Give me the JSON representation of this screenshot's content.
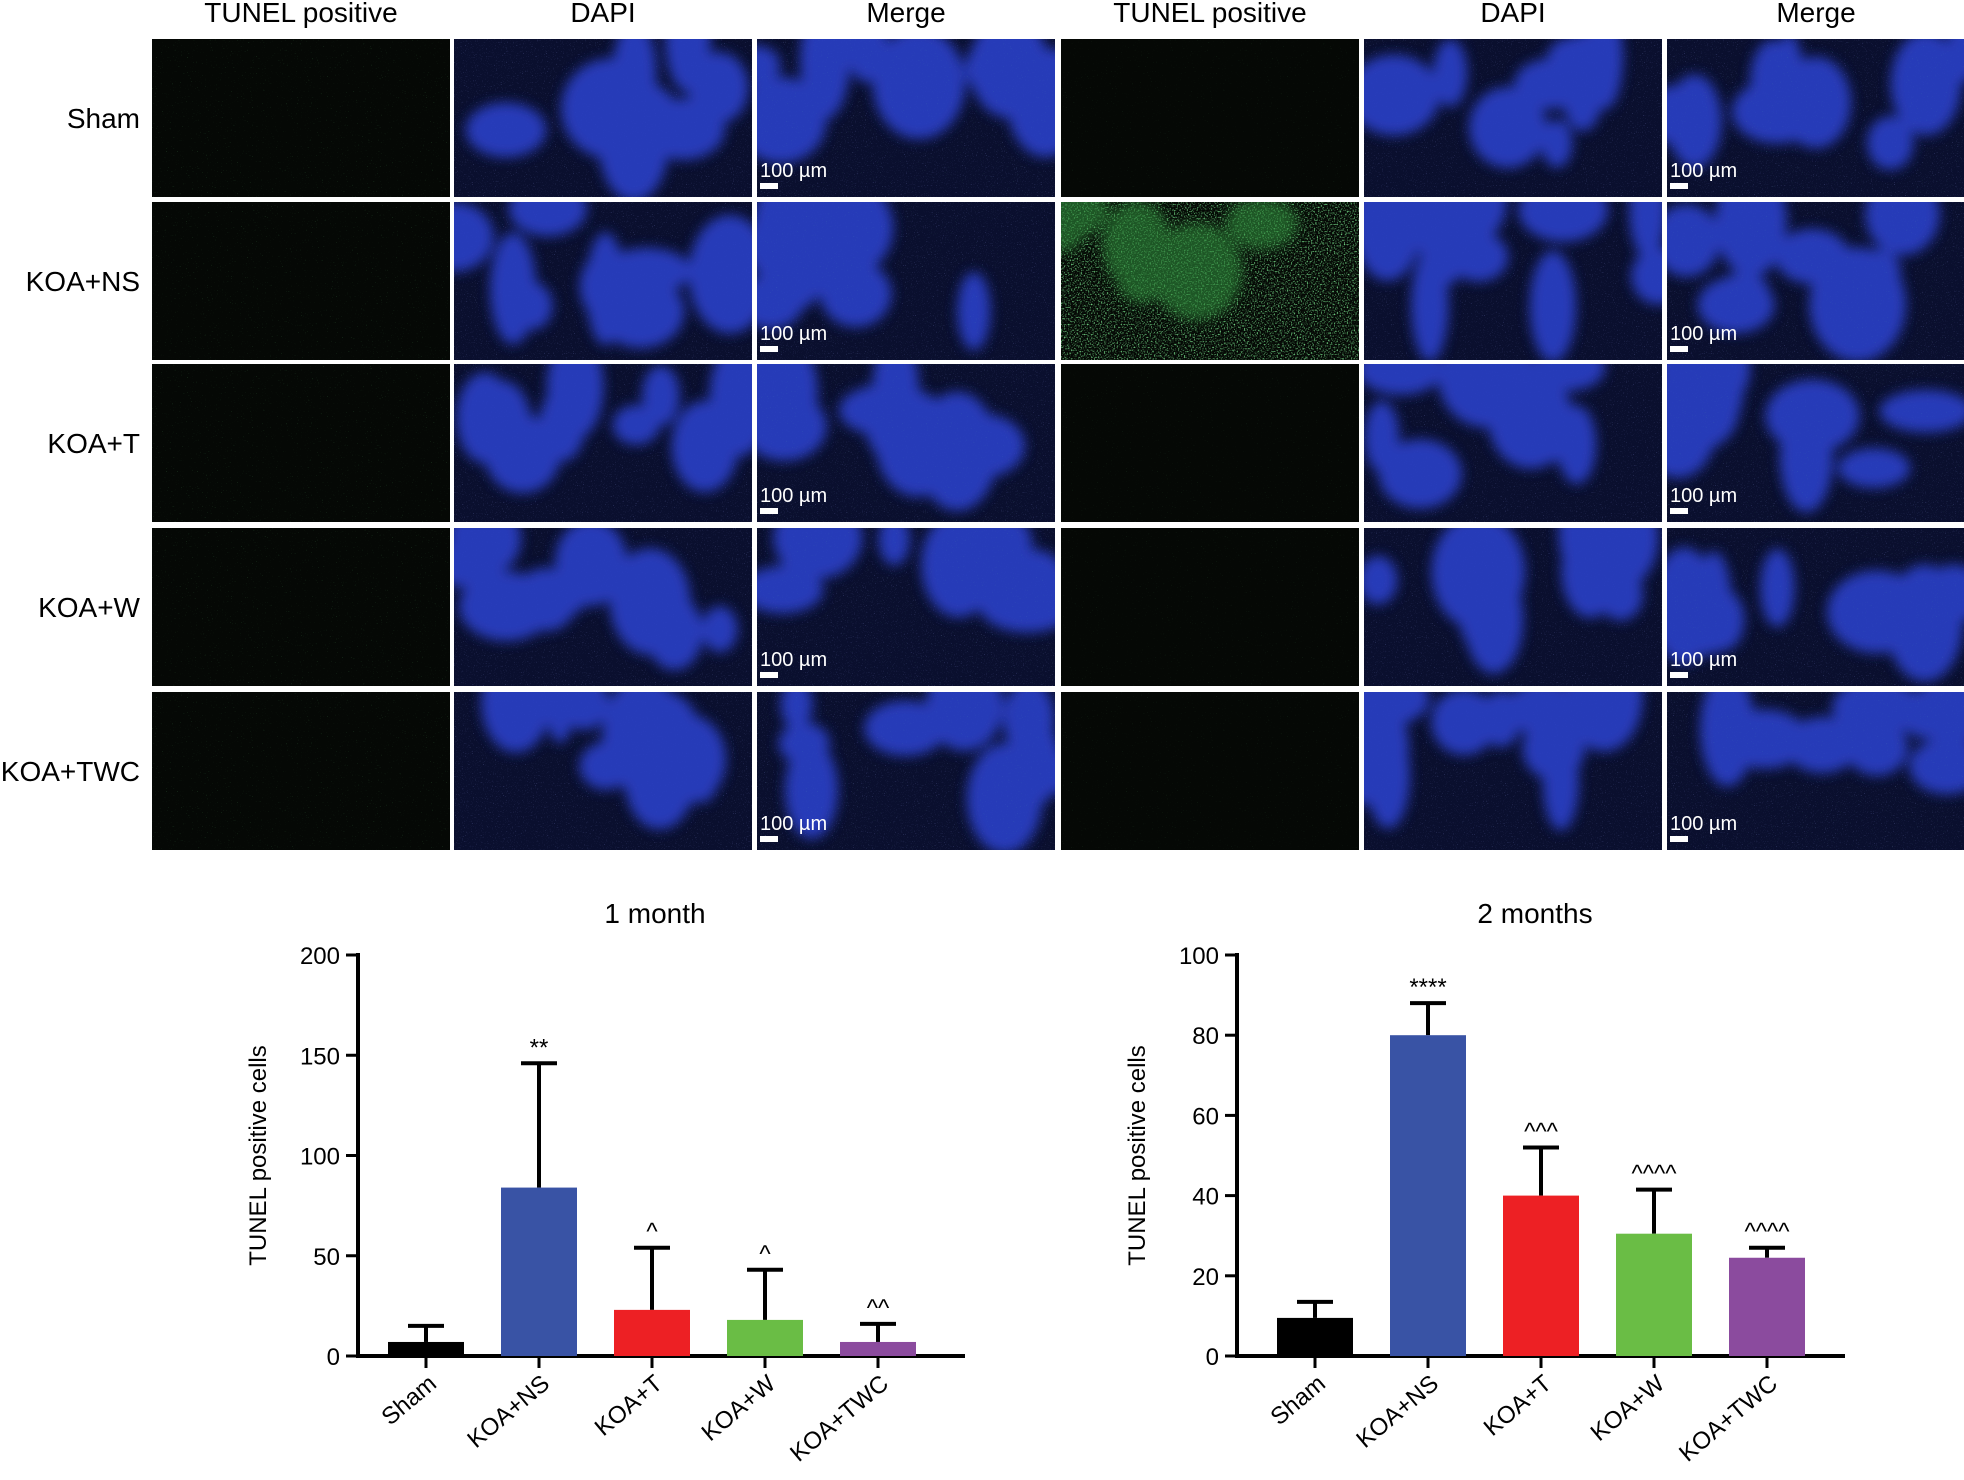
{
  "micrograph_grid": {
    "columns": [
      "TUNEL positive",
      "DAPI",
      "Merge",
      "TUNEL positive",
      "DAPI",
      "Merge"
    ],
    "rows": [
      "Sham",
      "KOA+NS",
      "KOA+T",
      "KOA+W",
      "KOA+TWC"
    ],
    "scale_bar_label": "100 µm"
  },
  "chart_data": [
    {
      "type": "bar",
      "title": "1 month",
      "xlabel": "",
      "ylabel": "TUNEL positive cells",
      "ylim": [
        0,
        200
      ],
      "yticks": [
        0,
        50,
        100,
        150,
        200
      ],
      "categories": [
        "Sham",
        "KOA+NS",
        "KOA+T",
        "KOA+W",
        "KOA+TWC"
      ],
      "values": [
        7,
        84,
        23,
        18,
        7
      ],
      "errors": [
        8,
        62,
        31,
        25,
        9
      ],
      "annotations": [
        "",
        "**",
        "^",
        "^",
        "^^"
      ],
      "colors": [
        "#000000",
        "#3953a5",
        "#ed2024",
        "#6abd45",
        "#8b4b9e"
      ]
    },
    {
      "type": "bar",
      "title": "2 months",
      "xlabel": "",
      "ylabel": "TUNEL positive cells",
      "ylim": [
        0,
        100
      ],
      "yticks": [
        0,
        20,
        40,
        60,
        80,
        100
      ],
      "categories": [
        "Sham",
        "KOA+NS",
        "KOA+T",
        "KOA+W",
        "KOA+TWC"
      ],
      "values": [
        9.5,
        80,
        40,
        30.5,
        24.5
      ],
      "errors": [
        4,
        8,
        12,
        11,
        2.5
      ],
      "annotations": [
        "",
        "****",
        "^^^",
        "^^^^",
        "^^^^"
      ],
      "colors": [
        "#000000",
        "#3953a5",
        "#ed2024",
        "#6abd45",
        "#8b4b9e"
      ]
    }
  ]
}
